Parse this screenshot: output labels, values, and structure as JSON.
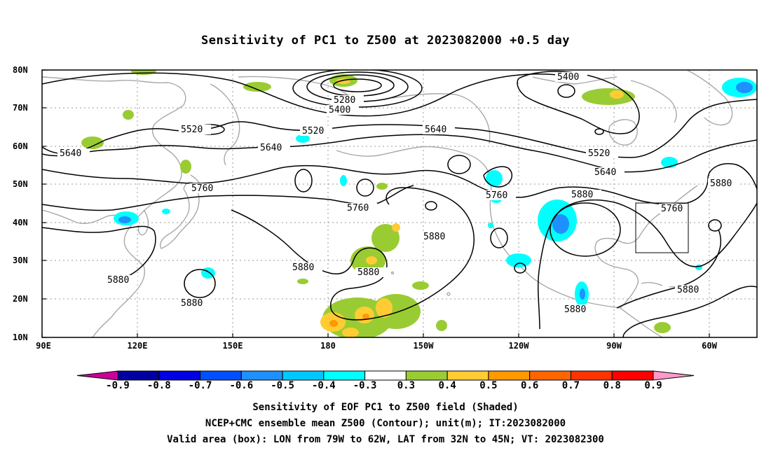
{
  "title": "Sensitivity of PC1 to Z500 at 2023082000 +0.5 day",
  "lat_labels": [
    "80N",
    "70N",
    "60N",
    "50N",
    "40N",
    "30N",
    "20N",
    "10N"
  ],
  "lon_labels": [
    "90E",
    "120E",
    "150E",
    "180",
    "150W",
    "120W",
    "90W",
    "60W"
  ],
  "contour_labels": [
    "5400",
    "5280",
    "5400",
    "5520",
    "5520",
    "5640",
    "5640",
    "5640",
    "5520",
    "5640",
    "5760",
    "5760",
    "5760",
    "5880",
    "5880",
    "5760",
    "5880",
    "5880",
    "5880",
    "5880",
    "5880",
    "5880"
  ],
  "colorbar": {
    "labels": [
      "-0.9",
      "-0.8",
      "-0.7",
      "-0.6",
      "-0.5",
      "-0.4",
      "-0.3",
      "0.3",
      "0.4",
      "0.5",
      "0.6",
      "0.7",
      "0.8",
      "0.9"
    ],
    "colors": [
      "#cc0099",
      "#0000a0",
      "#0000e0",
      "#0050ff",
      "#1e90ff",
      "#00c8ff",
      "#00ffff",
      "#ffffff",
      "#99cc33",
      "#ffcc33",
      "#ff9900",
      "#ff6600",
      "#ff3300",
      "#ff0000",
      "#ff99cc"
    ]
  },
  "captions": [
    "Sensitivity of EOF PC1 to Z500 field (Shaded)",
    "NCEP+CMC ensemble mean Z500 (Contour); unit(m); IT:2023082000",
    "Valid area (box): LON from 79W to 62W, LAT from 32N to 45N; VT: 2023082300"
  ]
}
